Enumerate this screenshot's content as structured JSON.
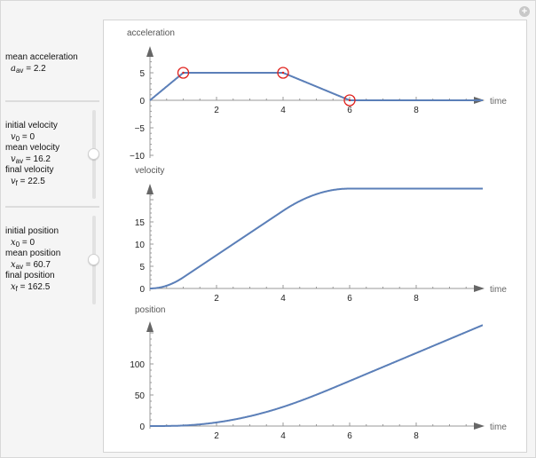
{
  "controls": {
    "acceleration": {
      "label": "mean acceleration",
      "sym": "a",
      "sub": "av",
      "value_text": " =  2.2"
    },
    "velocity": {
      "lines": [
        {
          "label": "initial velocity",
          "sym": "v",
          "sub": "0",
          "value_text": " = 0"
        },
        {
          "label": "mean velocity",
          "sym": "v",
          "sub": "av",
          "value_text": " = 16.2"
        },
        {
          "label": "final velocity",
          "sym": "v",
          "sub": "f",
          "value_text": " = 22.5"
        }
      ],
      "slider_fraction": 0.5
    },
    "position": {
      "lines": [
        {
          "label": "initial position",
          "sym": "x",
          "sub": "0",
          "value_text": " = 0"
        },
        {
          "label": "mean position",
          "sym": "x",
          "sub": "av",
          "value_text": " = 60.7"
        },
        {
          "label": "final position",
          "sym": "x",
          "sub": "f",
          "value_text": " = 162.5"
        }
      ],
      "slider_fraction": 0.5
    },
    "plus_icon": "+"
  },
  "colors": {
    "curve": "#5b7fb8",
    "marker": "#e0201b",
    "axis": "#777777"
  },
  "chart_data": [
    {
      "type": "line",
      "ylabel": "acceleration",
      "xlabel": "time",
      "xlim": [
        0,
        10
      ],
      "ylim": [
        -10,
        7
      ],
      "xticks": [
        "2",
        "4",
        "6",
        "8"
      ],
      "yticks": [
        "5",
        "0",
        "-5",
        "-10"
      ],
      "x": [
        0,
        1,
        4,
        6,
        10
      ],
      "y": [
        0,
        5,
        5,
        0,
        0
      ],
      "control_points": [
        [
          1,
          5
        ],
        [
          4,
          5
        ],
        [
          6,
          0
        ]
      ]
    },
    {
      "type": "line",
      "ylabel": "velocity",
      "xlabel": "time",
      "xlim": [
        0,
        10
      ],
      "ylim": [
        0,
        23.5
      ],
      "xticks": [
        "2",
        "4",
        "6",
        "8"
      ],
      "yticks": [
        "0",
        "5",
        "10",
        "15"
      ],
      "x": [
        0,
        1,
        2,
        3,
        4,
        5,
        6,
        7,
        8,
        9,
        10
      ],
      "y": [
        0,
        2.5,
        7.5,
        12.5,
        17.5,
        21.25,
        22.5,
        22.5,
        22.5,
        22.5,
        22.5
      ]
    },
    {
      "type": "line",
      "ylabel": "position",
      "xlabel": "time",
      "xlim": [
        0,
        10
      ],
      "ylim": [
        0,
        168
      ],
      "xticks": [
        "2",
        "4",
        "6",
        "8"
      ],
      "yticks": [
        "0",
        "50",
        "100"
      ],
      "x": [
        0,
        1,
        2,
        3,
        4,
        5,
        6,
        7,
        8,
        9,
        10
      ],
      "y": [
        0,
        0.83,
        5.83,
        15.83,
        30.83,
        50.42,
        72.5,
        95,
        117.5,
        140,
        162.5
      ]
    }
  ]
}
